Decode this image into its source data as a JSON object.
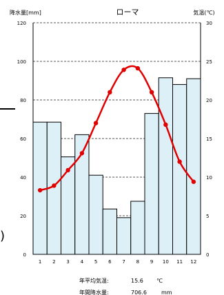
{
  "chart_data": {
    "type": "bar+line",
    "title": "ローマ",
    "y_left_label": "降水量[mm]",
    "y_right_label": "気温(℃)",
    "categories": [
      "1",
      "2",
      "3",
      "4",
      "5",
      "6",
      "7",
      "8",
      "9",
      "10",
      "11",
      "12"
    ],
    "precipitation": {
      "values": [
        68.5,
        68.5,
        50.5,
        62,
        41,
        23.5,
        19,
        27.5,
        73,
        91.5,
        88,
        91
      ],
      "color": "#ddf0f8"
    },
    "temperature": {
      "values": [
        8.3,
        8.9,
        10.9,
        13.1,
        17.0,
        21.0,
        23.9,
        24.1,
        21.0,
        16.8,
        12.0,
        9.4
      ],
      "color": "#e00000"
    },
    "y_left": {
      "min": 0,
      "max": 120,
      "ticks": [
        "0",
        "20",
        "40",
        "60",
        "80",
        "100",
        "120"
      ]
    },
    "y_right": {
      "min": 0,
      "max": 30,
      "ticks": [
        "0",
        "5",
        "10",
        "15",
        "20",
        "25",
        "30"
      ]
    },
    "grid": "horizontal-dashed"
  },
  "stats": {
    "avg_temp_label": "年平均気温:",
    "avg_temp_value": "15.6",
    "avg_temp_unit": "℃",
    "annual_precip_label": "年間降水量:",
    "annual_precip_value": "706.6",
    "annual_precip_unit": "mm"
  },
  "fragments": {
    "paren": ")"
  }
}
